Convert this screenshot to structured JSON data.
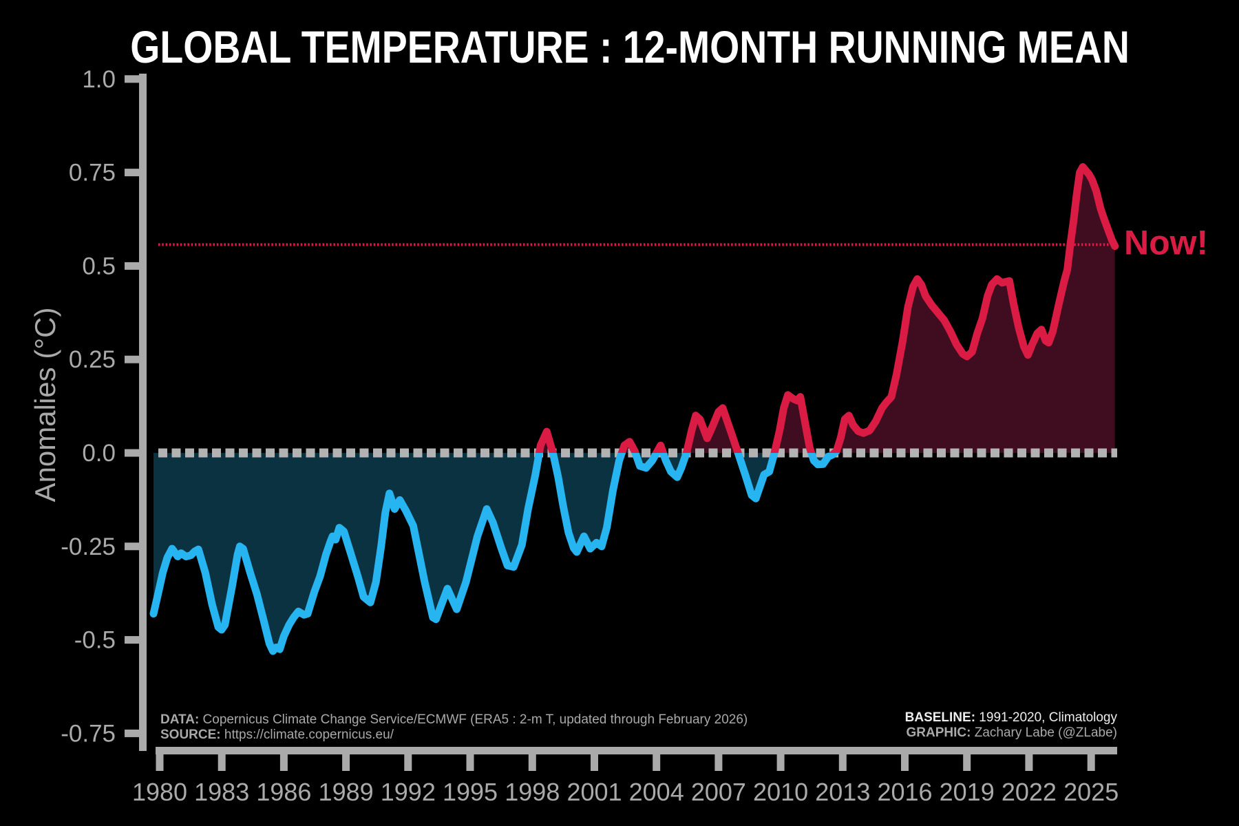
{
  "title": "GLOBAL TEMPERATURE : 12-MONTH RUNNING MEAN",
  "now_label": "Now!",
  "colors": {
    "background": "#000000",
    "axis": "#aaaaaa",
    "grid_dash": "#b3b3b3",
    "warm_line": "#da1b44",
    "warm_fill": "#400c20",
    "cool_line": "#27b5f2",
    "cool_fill": "#0b3241",
    "accent": "#da1b44",
    "title_text": "#ffffff",
    "credit_text": "#a9a9a9",
    "credit_bright": "#eeeeee"
  },
  "credits": {
    "data_label": "DATA:",
    "data_text": " Copernicus Climate Change Service/ECMWF (ERA5 : 2-m T, updated through February 2026)",
    "source_label": "SOURCE:",
    "source_text": " https://climate.copernicus.eu/",
    "baseline_label": "BASELINE:",
    "baseline_text": " 1991-2020, Climatology",
    "graphic_label": "GRAPHIC:",
    "graphic_text": " Zachary Labe (@ZLabe)"
  },
  "chart_data": {
    "type": "area",
    "title": "GLOBAL TEMPERATURE : 12-MONTH RUNNING MEAN",
    "xlabel": "",
    "ylabel": "Anomalies (°C)",
    "xlim": [
      1979.5,
      2026.3
    ],
    "ylim": [
      -0.82,
      1.0
    ],
    "grid": false,
    "legend": "none",
    "baseline_note": "anomalies relative to 1991-2020 climatology",
    "zero_value": 0.0,
    "now_value": 0.557,
    "x_ticks": [
      1980,
      1983,
      1986,
      1989,
      1992,
      1995,
      1998,
      2001,
      2004,
      2007,
      2010,
      2013,
      2016,
      2019,
      2022,
      2025
    ],
    "y_ticks": [
      {
        "value": 1.0,
        "label": "1.0"
      },
      {
        "value": 0.75,
        "label": "0.75"
      },
      {
        "value": 0.5,
        "label": "0.5"
      },
      {
        "value": 0.25,
        "label": "0.25"
      },
      {
        "value": 0.0,
        "label": "0.0"
      },
      {
        "value": -0.25,
        "label": "-0.25"
      },
      {
        "value": -0.5,
        "label": "-0.5"
      },
      {
        "value": -0.75,
        "label": "-0.75"
      }
    ],
    "series": [
      {
        "name": "12-month running mean anomaly",
        "points": [
          [
            1979.7,
            -0.43
          ],
          [
            1979.93,
            -0.375
          ],
          [
            1980.15,
            -0.32
          ],
          [
            1980.37,
            -0.28
          ],
          [
            1980.6,
            -0.256
          ],
          [
            1980.87,
            -0.277
          ],
          [
            1981.03,
            -0.268
          ],
          [
            1981.27,
            -0.277
          ],
          [
            1981.5,
            -0.274
          ],
          [
            1981.7,
            -0.263
          ],
          [
            1981.87,
            -0.258
          ],
          [
            1982.2,
            -0.32
          ],
          [
            1982.53,
            -0.405
          ],
          [
            1982.83,
            -0.466
          ],
          [
            1982.99,
            -0.473
          ],
          [
            1983.15,
            -0.46
          ],
          [
            1983.5,
            -0.357
          ],
          [
            1983.76,
            -0.272
          ],
          [
            1983.87,
            -0.25
          ],
          [
            1984.03,
            -0.256
          ],
          [
            1984.37,
            -0.32
          ],
          [
            1984.7,
            -0.378
          ],
          [
            1985.03,
            -0.45
          ],
          [
            1985.3,
            -0.51
          ],
          [
            1985.47,
            -0.53
          ],
          [
            1985.63,
            -0.52
          ],
          [
            1985.8,
            -0.525
          ],
          [
            1986.0,
            -0.49
          ],
          [
            1986.25,
            -0.46
          ],
          [
            1986.47,
            -0.44
          ],
          [
            1986.7,
            -0.424
          ],
          [
            1986.97,
            -0.433
          ],
          [
            1987.15,
            -0.43
          ],
          [
            1987.47,
            -0.372
          ],
          [
            1987.75,
            -0.33
          ],
          [
            1988.03,
            -0.272
          ],
          [
            1988.25,
            -0.237
          ],
          [
            1988.35,
            -0.223
          ],
          [
            1988.5,
            -0.232
          ],
          [
            1988.68,
            -0.2
          ],
          [
            1988.9,
            -0.21
          ],
          [
            1989.25,
            -0.272
          ],
          [
            1989.58,
            -0.332
          ],
          [
            1989.85,
            -0.385
          ],
          [
            1990.18,
            -0.4
          ],
          [
            1990.45,
            -0.345
          ],
          [
            1990.7,
            -0.25
          ],
          [
            1990.9,
            -0.16
          ],
          [
            1991.1,
            -0.108
          ],
          [
            1991.35,
            -0.15
          ],
          [
            1991.6,
            -0.126
          ],
          [
            1991.9,
            -0.155
          ],
          [
            1992.25,
            -0.195
          ],
          [
            1992.8,
            -0.345
          ],
          [
            1993.2,
            -0.44
          ],
          [
            1993.35,
            -0.445
          ],
          [
            1993.9,
            -0.363
          ],
          [
            1994.35,
            -0.418
          ],
          [
            1994.8,
            -0.345
          ],
          [
            1995.35,
            -0.223
          ],
          [
            1995.8,
            -0.15
          ],
          [
            1996.1,
            -0.186
          ],
          [
            1996.5,
            -0.254
          ],
          [
            1996.8,
            -0.301
          ],
          [
            1997.1,
            -0.305
          ],
          [
            1997.5,
            -0.246
          ],
          [
            1997.8,
            -0.15
          ],
          [
            1998.15,
            -0.058
          ],
          [
            1998.4,
            0.02
          ],
          [
            1998.7,
            0.057
          ],
          [
            1999.0,
            0.0
          ],
          [
            1999.25,
            -0.064
          ],
          [
            1999.5,
            -0.144
          ],
          [
            1999.75,
            -0.213
          ],
          [
            2000.0,
            -0.254
          ],
          [
            2000.15,
            -0.265
          ],
          [
            2000.5,
            -0.223
          ],
          [
            2000.8,
            -0.256
          ],
          [
            2001.1,
            -0.24
          ],
          [
            2001.35,
            -0.25
          ],
          [
            2001.6,
            -0.2
          ],
          [
            2001.9,
            -0.1
          ],
          [
            2002.2,
            -0.02
          ],
          [
            2002.45,
            0.02
          ],
          [
            2002.7,
            0.03
          ],
          [
            2002.95,
            0.005
          ],
          [
            2003.2,
            -0.035
          ],
          [
            2003.5,
            -0.04
          ],
          [
            2003.8,
            -0.02
          ],
          [
            2004.2,
            0.02
          ],
          [
            2004.45,
            -0.02
          ],
          [
            2004.7,
            -0.05
          ],
          [
            2005.0,
            -0.065
          ],
          [
            2005.2,
            -0.04
          ],
          [
            2005.45,
            0.0
          ],
          [
            2005.7,
            0.06
          ],
          [
            2005.9,
            0.1
          ],
          [
            2006.1,
            0.09
          ],
          [
            2006.45,
            0.039
          ],
          [
            2006.7,
            0.07
          ],
          [
            2007.0,
            0.11
          ],
          [
            2007.2,
            0.12
          ],
          [
            2007.45,
            0.08
          ],
          [
            2007.7,
            0.04
          ],
          [
            2008.0,
            -0.01
          ],
          [
            2008.3,
            -0.06
          ],
          [
            2008.6,
            -0.113
          ],
          [
            2008.8,
            -0.122
          ],
          [
            2009.0,
            -0.09
          ],
          [
            2009.2,
            -0.058
          ],
          [
            2009.45,
            -0.05
          ],
          [
            2009.7,
            0.0
          ],
          [
            2009.95,
            0.06
          ],
          [
            2010.15,
            0.12
          ],
          [
            2010.35,
            0.155
          ],
          [
            2010.6,
            0.145
          ],
          [
            2010.8,
            0.14
          ],
          [
            2010.95,
            0.15
          ],
          [
            2011.15,
            0.09
          ],
          [
            2011.4,
            0.015
          ],
          [
            2011.6,
            -0.02
          ],
          [
            2011.8,
            -0.031
          ],
          [
            2012.05,
            -0.03
          ],
          [
            2012.3,
            -0.01
          ],
          [
            2012.5,
            -0.005
          ],
          [
            2012.7,
            0.005
          ],
          [
            2012.9,
            0.04
          ],
          [
            2013.1,
            0.09
          ],
          [
            2013.3,
            0.1
          ],
          [
            2013.5,
            0.075
          ],
          [
            2013.75,
            0.058
          ],
          [
            2014.0,
            0.053
          ],
          [
            2014.3,
            0.06
          ],
          [
            2014.6,
            0.085
          ],
          [
            2014.9,
            0.12
          ],
          [
            2015.1,
            0.135
          ],
          [
            2015.35,
            0.15
          ],
          [
            2015.6,
            0.21
          ],
          [
            2015.9,
            0.3
          ],
          [
            2016.15,
            0.39
          ],
          [
            2016.4,
            0.445
          ],
          [
            2016.6,
            0.465
          ],
          [
            2016.8,
            0.45
          ],
          [
            2017.0,
            0.42
          ],
          [
            2017.3,
            0.395
          ],
          [
            2017.6,
            0.375
          ],
          [
            2017.9,
            0.355
          ],
          [
            2018.2,
            0.325
          ],
          [
            2018.5,
            0.29
          ],
          [
            2018.8,
            0.265
          ],
          [
            2019.0,
            0.258
          ],
          [
            2019.25,
            0.27
          ],
          [
            2019.5,
            0.32
          ],
          [
            2019.75,
            0.36
          ],
          [
            2020.0,
            0.42
          ],
          [
            2020.2,
            0.45
          ],
          [
            2020.45,
            0.465
          ],
          [
            2020.7,
            0.455
          ],
          [
            2021.05,
            0.46
          ],
          [
            2021.25,
            0.4
          ],
          [
            2021.5,
            0.335
          ],
          [
            2021.75,
            0.285
          ],
          [
            2021.95,
            0.262
          ],
          [
            2022.15,
            0.29
          ],
          [
            2022.4,
            0.32
          ],
          [
            2022.6,
            0.33
          ],
          [
            2022.8,
            0.3
          ],
          [
            2022.95,
            0.295
          ],
          [
            2023.15,
            0.325
          ],
          [
            2023.45,
            0.4
          ],
          [
            2023.7,
            0.46
          ],
          [
            2023.85,
            0.49
          ],
          [
            2024.0,
            0.56
          ],
          [
            2024.15,
            0.62
          ],
          [
            2024.3,
            0.69
          ],
          [
            2024.45,
            0.75
          ],
          [
            2024.6,
            0.765
          ],
          [
            2024.75,
            0.755
          ],
          [
            2024.9,
            0.745
          ],
          [
            2025.05,
            0.73
          ],
          [
            2025.25,
            0.7
          ],
          [
            2025.45,
            0.655
          ],
          [
            2025.6,
            0.63
          ],
          [
            2025.8,
            0.6
          ],
          [
            2026.0,
            0.57
          ],
          [
            2026.15,
            0.553
          ]
        ]
      }
    ]
  }
}
